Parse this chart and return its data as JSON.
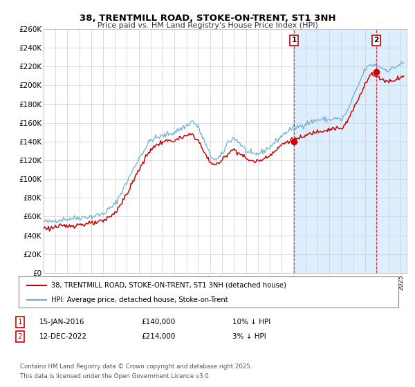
{
  "title": "38, TRENTMILL ROAD, STOKE-ON-TRENT, ST1 3NH",
  "subtitle": "Price paid vs. HM Land Registry's House Price Index (HPI)",
  "ylim": [
    0,
    260000
  ],
  "yticks": [
    0,
    20000,
    40000,
    60000,
    80000,
    100000,
    120000,
    140000,
    160000,
    180000,
    200000,
    220000,
    240000,
    260000
  ],
  "ytick_labels": [
    "£0",
    "£20K",
    "£40K",
    "£60K",
    "£80K",
    "£100K",
    "£120K",
    "£140K",
    "£160K",
    "£180K",
    "£200K",
    "£220K",
    "£240K",
    "£260K"
  ],
  "hpi_color": "#6baed6",
  "price_color": "#cc0000",
  "shade_color": "#ddeeff",
  "marker1_date": 2016.04,
  "marker1_price": 140000,
  "marker1_label": "1",
  "marker2_date": 2022.95,
  "marker2_price": 214000,
  "marker2_label": "2",
  "vline1_date": 2016.04,
  "vline2_date": 2022.95,
  "legend_line1": "38, TRENTMILL ROAD, STOKE-ON-TRENT, ST1 3NH (detached house)",
  "legend_line2": "HPI: Average price, detached house, Stoke-on-Trent",
  "table_row1": [
    "1",
    "15-JAN-2016",
    "£140,000",
    "10% ↓ HPI"
  ],
  "table_row2": [
    "2",
    "12-DEC-2022",
    "£214,000",
    "3% ↓ HPI"
  ],
  "footer": "Contains HM Land Registry data © Crown copyright and database right 2025.\nThis data is licensed under the Open Government Licence v3.0.",
  "background_color": "#ffffff",
  "grid_color": "#cccccc",
  "xmin": 1995.0,
  "xmax": 2025.5
}
